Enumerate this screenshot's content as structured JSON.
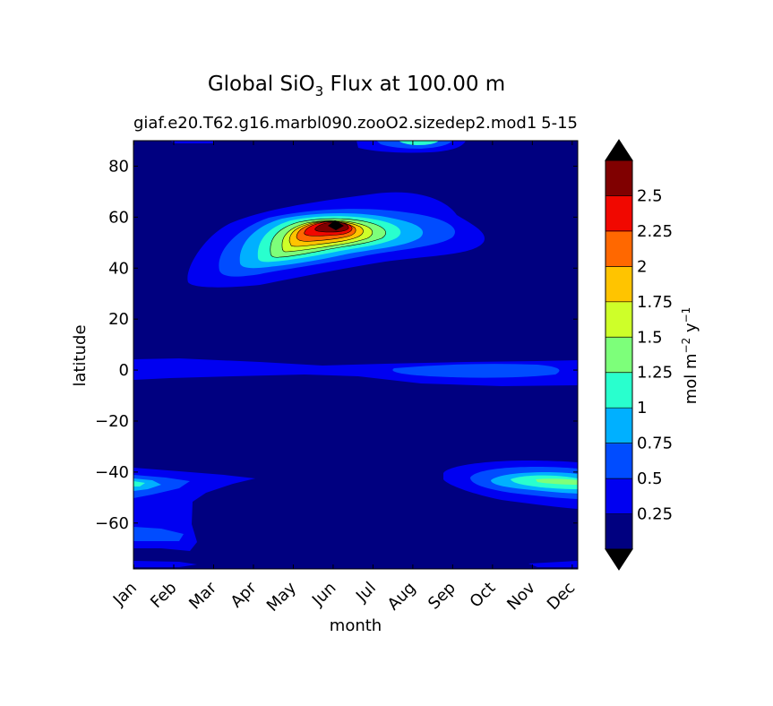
{
  "figure": {
    "title_main": "Global SiO",
    "title_sub": "3",
    "title_rest": " Flux at 100.00 m",
    "case_name": "giaf.e20.T62.g16.marbl090.zooO2.sizedep2.mod1",
    "year_label": "5-15"
  },
  "chart_data": {
    "type": "heatmap",
    "subtype": "filled-contour",
    "title": "Global SiO3 Flux at 100.00 m",
    "xlabel": "month",
    "ylabel": "latitude",
    "x_ticks": [
      "Jan",
      "Feb",
      "Mar",
      "Apr",
      "May",
      "Jun",
      "Jul",
      "Aug",
      "Sep",
      "Oct",
      "Nov",
      "Dec"
    ],
    "y_ticks": [
      80,
      60,
      40,
      20,
      0,
      -20,
      -40,
      -60
    ],
    "y_tick_labels": [
      "80",
      "60",
      "40",
      "20",
      "0",
      "−20",
      "−40",
      "−60"
    ],
    "ylim": [
      -78,
      90
    ],
    "colorbar": {
      "label": "mol m⁻² y⁻¹",
      "label_main": "mol m",
      "label_exp1": "−2",
      "label_mid": " y",
      "label_exp2": "−1",
      "levels": [
        0,
        0.25,
        0.5,
        0.75,
        1.0,
        1.25,
        1.5,
        1.75,
        2.0,
        2.25,
        2.5,
        2.75
      ],
      "tick_values": [
        0.25,
        0.5,
        0.75,
        1.0,
        1.25,
        1.5,
        1.75,
        2.0,
        2.25,
        2.5
      ],
      "tick_labels": [
        "0.25",
        "0.5",
        "0.75",
        "1",
        "1.25",
        "1.5",
        "1.75",
        "2",
        "2.25",
        "2.5"
      ],
      "extend": "both",
      "colors": [
        "#000080",
        "#0000f1",
        "#004cff",
        "#00b0ff",
        "#29ffce",
        "#7dff7a",
        "#ceff29",
        "#ffc400",
        "#ff6800",
        "#f10800",
        "#800000"
      ],
      "under_color": "#000000",
      "over_color": "#000000"
    },
    "features": [
      {
        "name": "north-pacific-atlantic-bloom",
        "month_peak": "Jun",
        "lat_peak": 55,
        "peak_value": 2.75,
        "lat_range": [
          33,
          68
        ],
        "month_range": [
          "Mar",
          "Oct"
        ]
      },
      {
        "name": "equatorial-band",
        "lat": 0,
        "value": 0.25
      },
      {
        "name": "southern-ocean-late-year",
        "lat_range": [
          -55,
          -38
        ],
        "month_range": [
          "Sep",
          "Dec"
        ],
        "peak_value": 1.25
      },
      {
        "name": "southern-ocean-early-year",
        "lat_range": [
          -72,
          -42
        ],
        "month_range": [
          "Jan",
          "Apr"
        ],
        "peak_value": 1.25
      },
      {
        "name": "arctic-summer",
        "lat_range": [
          86,
          90
        ],
        "month_range": [
          "Jul",
          "Aug"
        ],
        "peak_value": 1.0
      }
    ]
  }
}
